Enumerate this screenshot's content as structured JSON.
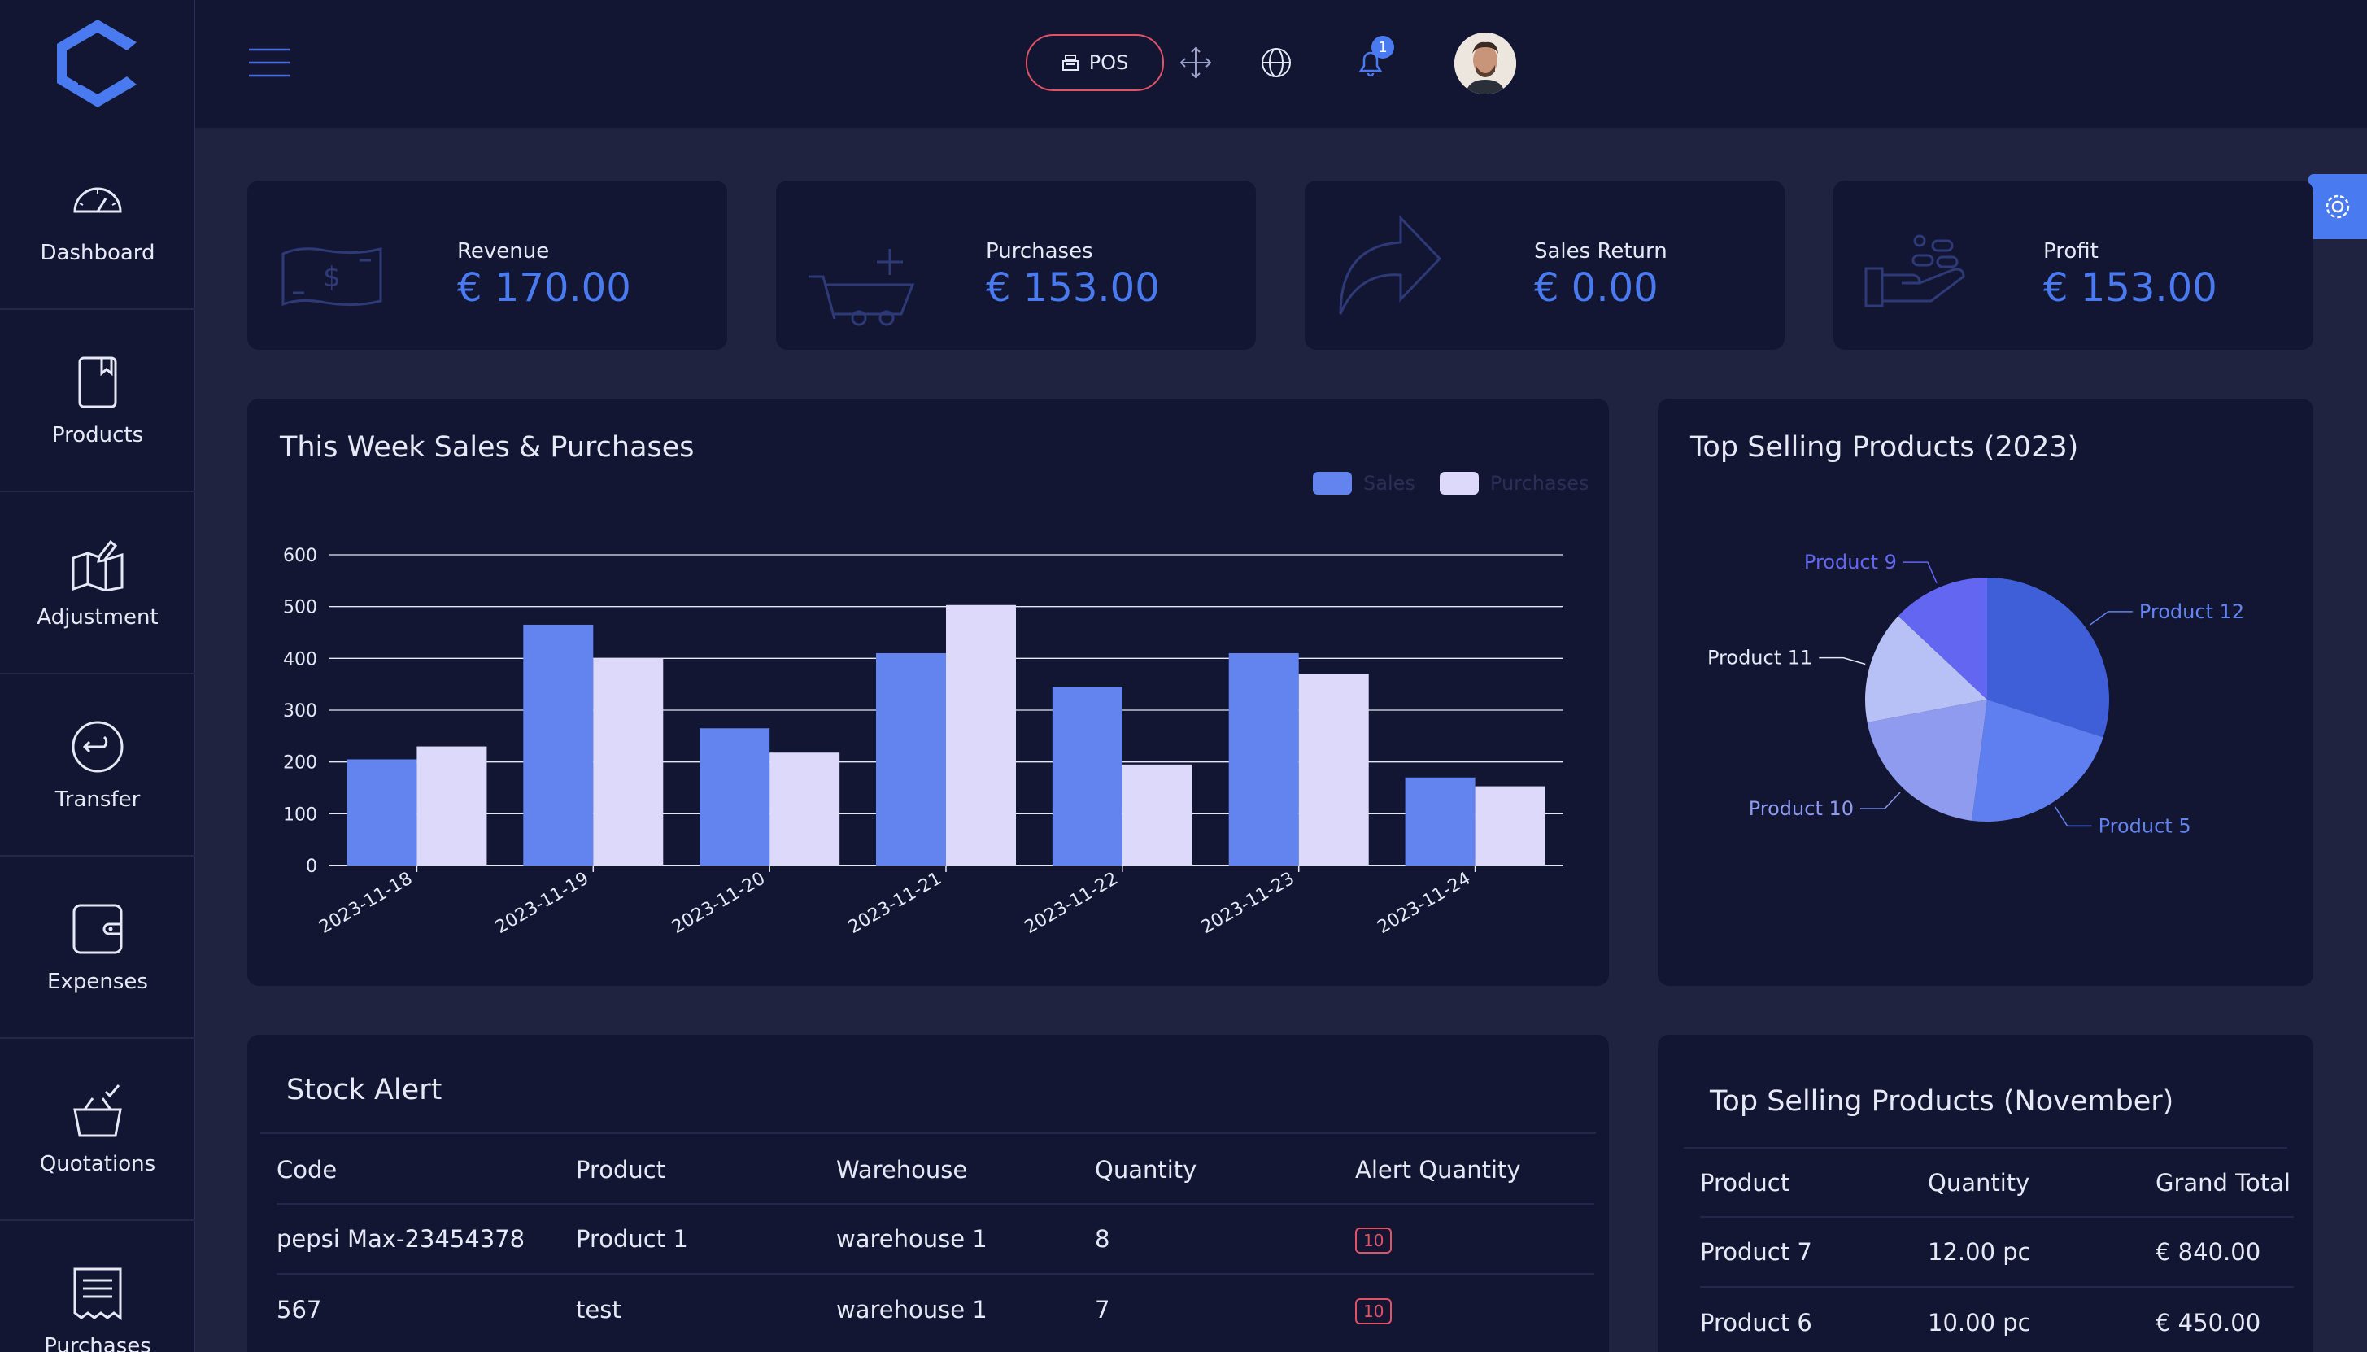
{
  "sidebar": {
    "items": [
      {
        "label": "Dashboard",
        "icon": "gauge-icon"
      },
      {
        "label": "Products",
        "icon": "book-icon"
      },
      {
        "label": "Adjustment",
        "icon": "map-pen-icon"
      },
      {
        "label": "Transfer",
        "icon": "return-arrow-icon"
      },
      {
        "label": "Expenses",
        "icon": "wallet-icon"
      },
      {
        "label": "Quotations",
        "icon": "basket-check-icon"
      },
      {
        "label": "Purchases",
        "icon": "receipt-icon"
      }
    ]
  },
  "header": {
    "pos_label": "POS",
    "notification_count": "1"
  },
  "stats": [
    {
      "label": "Revenue",
      "value": "€ 170.00",
      "icon": "banknote-icon"
    },
    {
      "label": "Purchases",
      "value": "€ 153.00",
      "icon": "cart-plus-icon"
    },
    {
      "label": "Sales Return",
      "value": "€ 0.00",
      "icon": "share-arrow-icon"
    },
    {
      "label": "Profit",
      "value": "€ 153.00",
      "icon": "hand-coins-icon"
    }
  ],
  "weekly_chart": {
    "title": "This Week Sales & Purchases",
    "legend": [
      "Sales",
      "Purchases"
    ]
  },
  "top_products_chart": {
    "title": "Top Selling Products (2023)"
  },
  "chart_data": [
    {
      "type": "bar",
      "title": "This Week Sales & Purchases",
      "categories": [
        "2023-11-18",
        "2023-11-19",
        "2023-11-20",
        "2023-11-21",
        "2023-11-22",
        "2023-11-23",
        "2023-11-24"
      ],
      "series": [
        {
          "name": "Sales",
          "values": [
            205,
            465,
            265,
            410,
            345,
            410,
            170
          ],
          "color": "#6383ee"
        },
        {
          "name": "Purchases",
          "values": [
            230,
            400,
            218,
            503,
            195,
            370,
            153
          ],
          "color": "#ddd9fa"
        }
      ],
      "ylim": [
        0,
        600
      ],
      "yticks": [
        0,
        100,
        200,
        300,
        400,
        500,
        600
      ],
      "grid": true,
      "legend": "top-right"
    },
    {
      "type": "pie",
      "title": "Top Selling Products (2023)",
      "labels": [
        "Product 12",
        "Product 5",
        "Product 10",
        "Product 11",
        "Product 9"
      ],
      "values": [
        30,
        22,
        20,
        15,
        13
      ],
      "colors": [
        "#3f5fd8",
        "#5f7ff0",
        "#8f9bee",
        "#b8c1f6",
        "#6366f1"
      ],
      "label_colors": [
        "#6383ee",
        "#6383ee",
        "#8f9bee",
        "#e6e8f5",
        "#6366f1"
      ]
    }
  ],
  "stock_alert": {
    "title": "Stock Alert",
    "columns": [
      "Code",
      "Product",
      "Warehouse",
      "Quantity",
      "Alert Quantity"
    ],
    "rows": [
      [
        "pepsi Max-23454378",
        "Product 1",
        "warehouse 1",
        "8",
        "10"
      ],
      [
        "567",
        "test",
        "warehouse 1",
        "7",
        "10"
      ]
    ]
  },
  "top_november": {
    "title": "Top Selling Products (November)",
    "columns": [
      "Product",
      "Quantity",
      "Grand Total"
    ],
    "rows": [
      [
        "Product 7",
        "12.00 pc",
        "€ 840.00"
      ],
      [
        "Product 6",
        "10.00 pc",
        "€ 450.00"
      ]
    ]
  },
  "colors": {
    "accent": "#4a7af0",
    "sidebar_bg": "#121633",
    "page_bg": "#1f2340",
    "danger": "#e05265"
  }
}
